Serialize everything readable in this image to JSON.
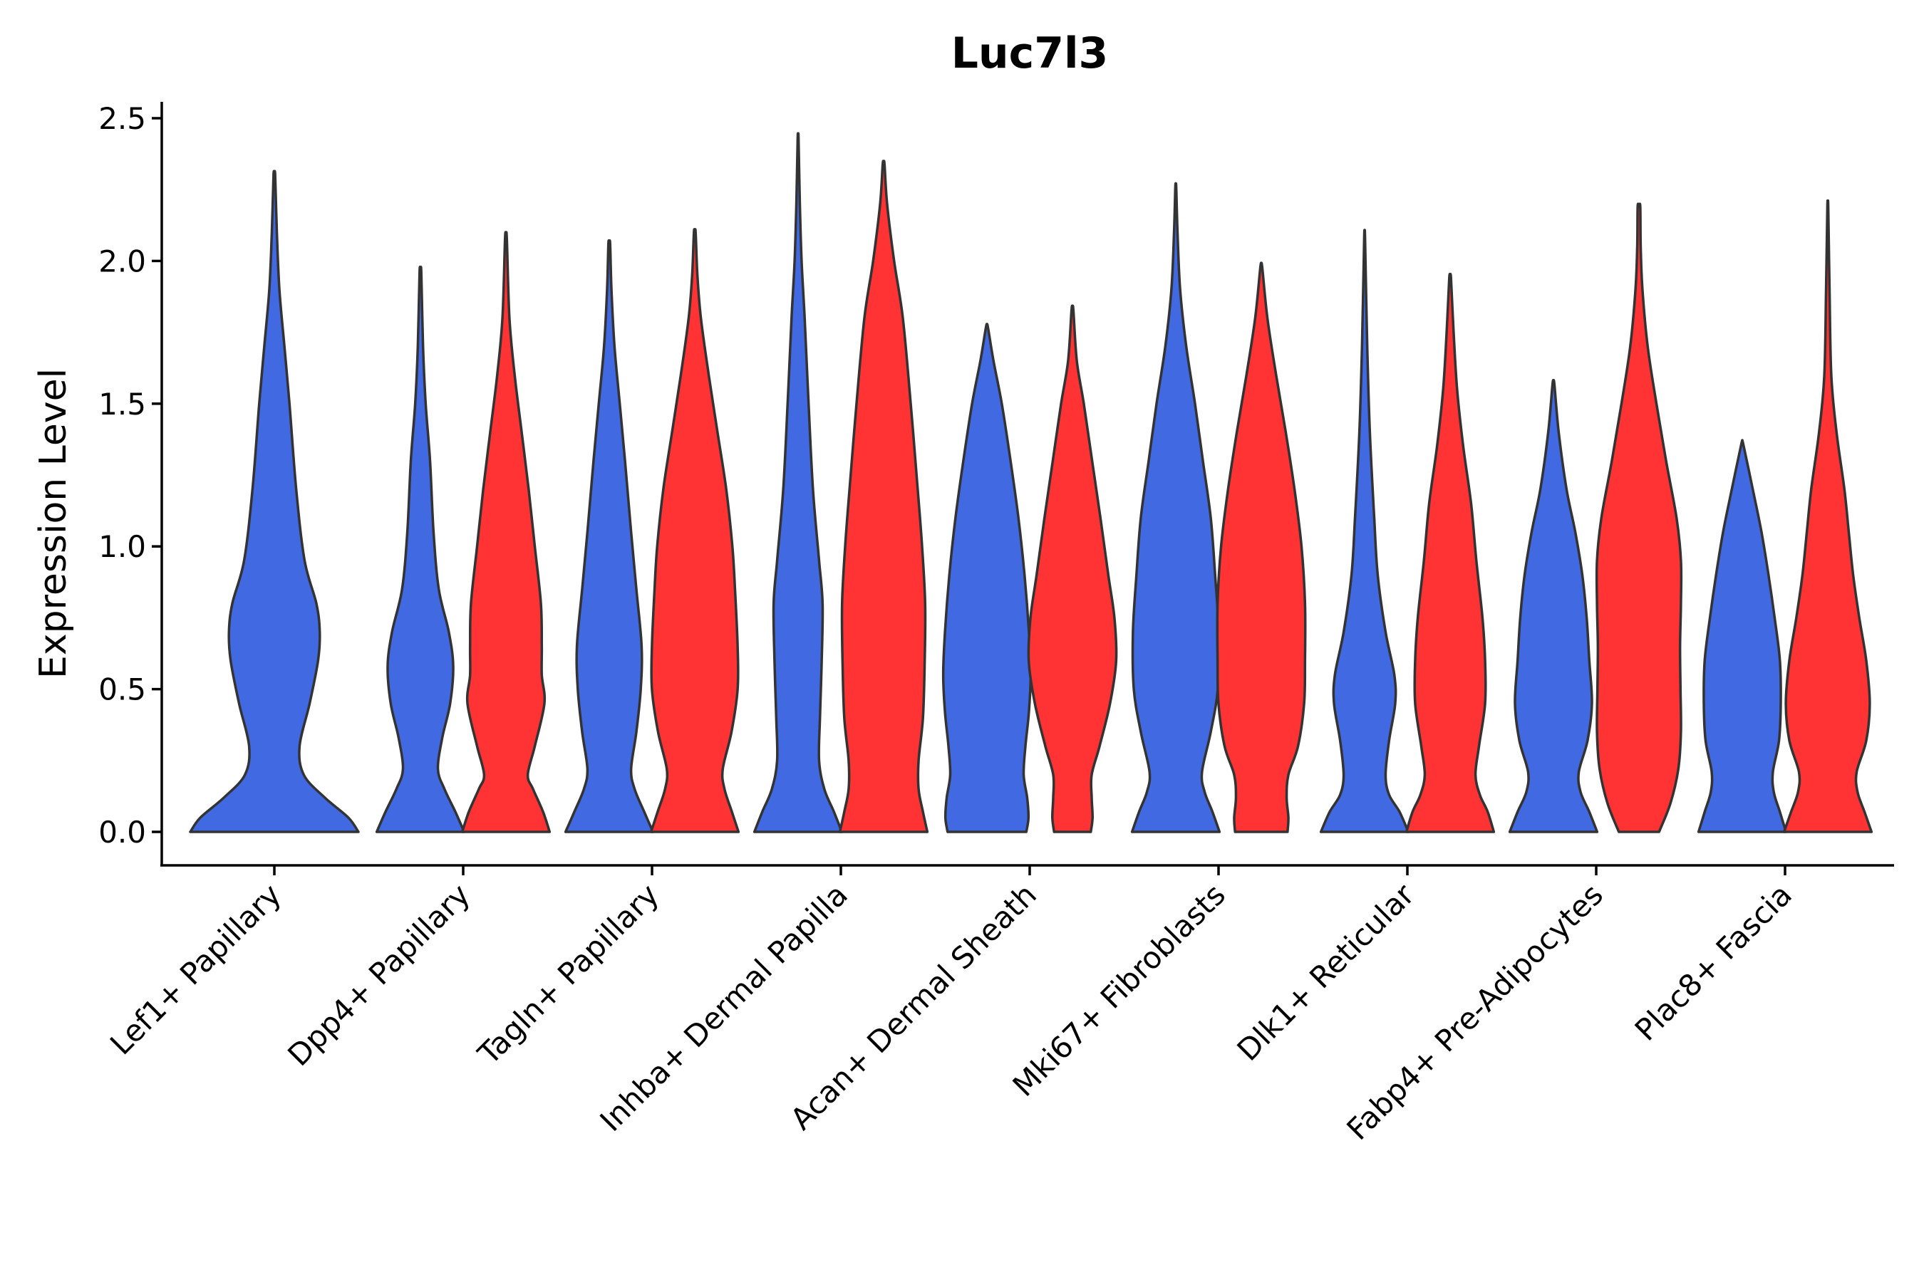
{
  "chart_data": {
    "type": "violin",
    "title": "Luc7l3",
    "xlabel": "",
    "ylabel": "Expression Level",
    "ylim": [
      -0.12,
      2.56
    ],
    "yticks": [
      "0.0",
      "0.5",
      "1.0",
      "1.5",
      "2.0",
      "2.5"
    ],
    "ytick_values": [
      0.0,
      0.5,
      1.0,
      1.5,
      2.0,
      2.5
    ],
    "categories": [
      "Lef1+ Papillary",
      "Dpp4+ Papillary",
      "Tagln+ Papillary",
      "Inhba+ Dermal Papilla",
      "Acan+ Dermal Sheath",
      "Mki67+ Fibroblasts",
      "Dlk1+ Reticular",
      "Fabp4+ Pre-Adipocytes",
      "Plac8+ Fascia"
    ],
    "split_colors": {
      "group1": "#4169E1",
      "group2": "#FF3333"
    },
    "violins": [
      {
        "category": "Lef1+ Papillary",
        "group": "group1",
        "ymax": 2.3,
        "profile": [
          [
            0,
            1.0
          ],
          [
            0.05,
            0.88
          ],
          [
            0.12,
            0.6
          ],
          [
            0.2,
            0.35
          ],
          [
            0.3,
            0.3
          ],
          [
            0.45,
            0.42
          ],
          [
            0.6,
            0.52
          ],
          [
            0.7,
            0.54
          ],
          [
            0.8,
            0.5
          ],
          [
            0.95,
            0.36
          ],
          [
            1.2,
            0.26
          ],
          [
            1.5,
            0.18
          ],
          [
            1.7,
            0.12
          ],
          [
            1.9,
            0.06
          ],
          [
            2.1,
            0.03
          ],
          [
            2.3,
            0.01
          ]
        ]
      },
      {
        "category": "Dpp4+ Papillary",
        "group": "group1",
        "ymax": 1.96,
        "profile": [
          [
            0,
            1.0
          ],
          [
            0.07,
            0.8
          ],
          [
            0.15,
            0.55
          ],
          [
            0.22,
            0.4
          ],
          [
            0.33,
            0.5
          ],
          [
            0.45,
            0.68
          ],
          [
            0.58,
            0.75
          ],
          [
            0.7,
            0.65
          ],
          [
            0.85,
            0.42
          ],
          [
            1.05,
            0.3
          ],
          [
            1.3,
            0.22
          ],
          [
            1.5,
            0.12
          ],
          [
            1.7,
            0.06
          ],
          [
            1.96,
            0.02
          ]
        ]
      },
      {
        "category": "Dpp4+ Papillary",
        "group": "group2",
        "ymax": 2.08,
        "profile": [
          [
            0,
            1.0
          ],
          [
            0.07,
            0.85
          ],
          [
            0.15,
            0.62
          ],
          [
            0.2,
            0.5
          ],
          [
            0.3,
            0.66
          ],
          [
            0.45,
            0.88
          ],
          [
            0.55,
            0.82
          ],
          [
            0.65,
            0.82
          ],
          [
            0.8,
            0.8
          ],
          [
            1.0,
            0.66
          ],
          [
            1.2,
            0.52
          ],
          [
            1.4,
            0.36
          ],
          [
            1.6,
            0.2
          ],
          [
            1.8,
            0.08
          ],
          [
            2.08,
            0.02
          ]
        ]
      },
      {
        "category": "Tagln+ Papillary",
        "group": "group1",
        "ymax": 2.06,
        "profile": [
          [
            0,
            1.0
          ],
          [
            0.07,
            0.8
          ],
          [
            0.15,
            0.58
          ],
          [
            0.22,
            0.5
          ],
          [
            0.35,
            0.62
          ],
          [
            0.5,
            0.72
          ],
          [
            0.65,
            0.74
          ],
          [
            0.85,
            0.62
          ],
          [
            1.05,
            0.5
          ],
          [
            1.3,
            0.36
          ],
          [
            1.5,
            0.24
          ],
          [
            1.7,
            0.12
          ],
          [
            1.9,
            0.05
          ],
          [
            2.06,
            0.02
          ]
        ]
      },
      {
        "category": "Tagln+ Papillary",
        "group": "group2",
        "ymax": 2.1,
        "profile": [
          [
            0,
            1.0
          ],
          [
            0.07,
            0.85
          ],
          [
            0.15,
            0.68
          ],
          [
            0.22,
            0.64
          ],
          [
            0.35,
            0.84
          ],
          [
            0.5,
            0.98
          ],
          [
            0.65,
            0.98
          ],
          [
            0.85,
            0.92
          ],
          [
            1.0,
            0.86
          ],
          [
            1.2,
            0.72
          ],
          [
            1.4,
            0.52
          ],
          [
            1.6,
            0.32
          ],
          [
            1.8,
            0.14
          ],
          [
            1.95,
            0.06
          ],
          [
            2.1,
            0.02
          ]
        ]
      },
      {
        "category": "Inhba+ Dermal Papilla",
        "group": "group1",
        "ymax": 2.43,
        "profile": [
          [
            0,
            1.0
          ],
          [
            0.07,
            0.82
          ],
          [
            0.15,
            0.6
          ],
          [
            0.25,
            0.48
          ],
          [
            0.4,
            0.5
          ],
          [
            0.6,
            0.54
          ],
          [
            0.8,
            0.56
          ],
          [
            0.95,
            0.48
          ],
          [
            1.2,
            0.34
          ],
          [
            1.5,
            0.24
          ],
          [
            1.8,
            0.15
          ],
          [
            2.0,
            0.08
          ],
          [
            2.2,
            0.04
          ],
          [
            2.43,
            0.01
          ]
        ]
      },
      {
        "category": "Inhba+ Dermal Papilla",
        "group": "group2",
        "ymax": 2.34,
        "profile": [
          [
            0,
            1.0
          ],
          [
            0.07,
            0.9
          ],
          [
            0.15,
            0.8
          ],
          [
            0.25,
            0.8
          ],
          [
            0.4,
            0.9
          ],
          [
            0.6,
            0.94
          ],
          [
            0.8,
            0.95
          ],
          [
            1.0,
            0.88
          ],
          [
            1.2,
            0.78
          ],
          [
            1.5,
            0.62
          ],
          [
            1.8,
            0.44
          ],
          [
            2.0,
            0.24
          ],
          [
            2.2,
            0.08
          ],
          [
            2.34,
            0.02
          ]
        ]
      },
      {
        "category": "Acan+ Dermal Sheath",
        "group": "group1",
        "ymax": 1.77,
        "profile": [
          [
            0,
            0.9
          ],
          [
            0.05,
            0.95
          ],
          [
            0.12,
            0.92
          ],
          [
            0.2,
            0.84
          ],
          [
            0.3,
            0.88
          ],
          [
            0.42,
            0.96
          ],
          [
            0.55,
            1.0
          ],
          [
            0.7,
            0.96
          ],
          [
            0.9,
            0.86
          ],
          [
            1.1,
            0.72
          ],
          [
            1.3,
            0.54
          ],
          [
            1.5,
            0.34
          ],
          [
            1.65,
            0.15
          ],
          [
            1.77,
            0.02
          ]
        ]
      },
      {
        "category": "Acan+ Dermal Sheath",
        "group": "group2",
        "ymax": 1.83,
        "profile": [
          [
            0,
            0.42
          ],
          [
            0.05,
            0.46
          ],
          [
            0.12,
            0.44
          ],
          [
            0.2,
            0.44
          ],
          [
            0.3,
            0.62
          ],
          [
            0.45,
            0.86
          ],
          [
            0.6,
            1.0
          ],
          [
            0.75,
            0.96
          ],
          [
            0.9,
            0.82
          ],
          [
            1.1,
            0.64
          ],
          [
            1.3,
            0.45
          ],
          [
            1.5,
            0.26
          ],
          [
            1.65,
            0.1
          ],
          [
            1.83,
            0.02
          ]
        ]
      },
      {
        "category": "Mki67+ Fibroblasts",
        "group": "group1",
        "ymax": 2.26,
        "profile": [
          [
            0,
            1.0
          ],
          [
            0.07,
            0.84
          ],
          [
            0.14,
            0.66
          ],
          [
            0.21,
            0.6
          ],
          [
            0.35,
            0.8
          ],
          [
            0.5,
            0.96
          ],
          [
            0.7,
            0.98
          ],
          [
            0.9,
            0.9
          ],
          [
            1.1,
            0.8
          ],
          [
            1.3,
            0.62
          ],
          [
            1.5,
            0.44
          ],
          [
            1.7,
            0.24
          ],
          [
            1.9,
            0.1
          ],
          [
            2.1,
            0.04
          ],
          [
            2.26,
            0.01
          ]
        ]
      },
      {
        "category": "Mki67+ Fibroblasts",
        "group": "group2",
        "ymax": 1.98,
        "profile": [
          [
            0,
            0.6
          ],
          [
            0.05,
            0.62
          ],
          [
            0.12,
            0.58
          ],
          [
            0.2,
            0.62
          ],
          [
            0.3,
            0.84
          ],
          [
            0.45,
            0.98
          ],
          [
            0.6,
            1.0
          ],
          [
            0.8,
            1.0
          ],
          [
            1.0,
            0.92
          ],
          [
            1.2,
            0.76
          ],
          [
            1.4,
            0.56
          ],
          [
            1.6,
            0.34
          ],
          [
            1.8,
            0.14
          ],
          [
            1.98,
            0.02
          ]
        ]
      },
      {
        "category": "Dlk1+ Reticular",
        "group": "group1",
        "ymax": 2.08,
        "profile": [
          [
            0,
            1.0
          ],
          [
            0.07,
            0.8
          ],
          [
            0.13,
            0.56
          ],
          [
            0.2,
            0.48
          ],
          [
            0.32,
            0.56
          ],
          [
            0.45,
            0.7
          ],
          [
            0.55,
            0.68
          ],
          [
            0.7,
            0.48
          ],
          [
            0.9,
            0.3
          ],
          [
            1.1,
            0.22
          ],
          [
            1.4,
            0.12
          ],
          [
            1.7,
            0.06
          ],
          [
            2.08,
            0.01
          ]
        ]
      },
      {
        "category": "Dlk1+ Reticular",
        "group": "group2",
        "ymax": 1.94,
        "profile": [
          [
            0,
            1.0
          ],
          [
            0.07,
            0.86
          ],
          [
            0.13,
            0.68
          ],
          [
            0.2,
            0.58
          ],
          [
            0.3,
            0.66
          ],
          [
            0.45,
            0.8
          ],
          [
            0.6,
            0.8
          ],
          [
            0.75,
            0.74
          ],
          [
            0.95,
            0.6
          ],
          [
            1.15,
            0.48
          ],
          [
            1.35,
            0.3
          ],
          [
            1.55,
            0.16
          ],
          [
            1.75,
            0.08
          ],
          [
            1.94,
            0.02
          ]
        ]
      },
      {
        "category": "Fabp4+ Pre-Adipocytes",
        "group": "group1",
        "ymax": 1.57,
        "profile": [
          [
            0,
            1.0
          ],
          [
            0.07,
            0.82
          ],
          [
            0.14,
            0.62
          ],
          [
            0.21,
            0.58
          ],
          [
            0.32,
            0.78
          ],
          [
            0.45,
            0.88
          ],
          [
            0.6,
            0.82
          ],
          [
            0.75,
            0.76
          ],
          [
            0.9,
            0.66
          ],
          [
            1.05,
            0.5
          ],
          [
            1.2,
            0.3
          ],
          [
            1.4,
            0.12
          ],
          [
            1.57,
            0.02
          ]
        ]
      },
      {
        "category": "Fabp4+ Pre-Adipocytes",
        "group": "group2",
        "ymax": 2.19,
        "profile": [
          [
            0,
            0.46
          ],
          [
            0.1,
            0.72
          ],
          [
            0.22,
            0.9
          ],
          [
            0.35,
            0.96
          ],
          [
            0.5,
            0.95
          ],
          [
            0.65,
            0.94
          ],
          [
            0.8,
            0.96
          ],
          [
            0.95,
            0.96
          ],
          [
            1.1,
            0.86
          ],
          [
            1.3,
            0.62
          ],
          [
            1.5,
            0.4
          ],
          [
            1.7,
            0.2
          ],
          [
            1.9,
            0.08
          ],
          [
            2.05,
            0.04
          ],
          [
            2.19,
            0.03
          ]
        ]
      },
      {
        "category": "Plac8+ Fascia",
        "group": "group1",
        "ymax": 1.36,
        "profile": [
          [
            0,
            1.0
          ],
          [
            0.07,
            0.86
          ],
          [
            0.14,
            0.72
          ],
          [
            0.21,
            0.7
          ],
          [
            0.32,
            0.84
          ],
          [
            0.45,
            0.88
          ],
          [
            0.6,
            0.86
          ],
          [
            0.75,
            0.74
          ],
          [
            0.9,
            0.6
          ],
          [
            1.05,
            0.44
          ],
          [
            1.2,
            0.24
          ],
          [
            1.36,
            0.02
          ]
        ]
      },
      {
        "category": "Plac8+ Fascia",
        "group": "group2",
        "ymax": 2.19,
        "profile": [
          [
            0,
            1.0
          ],
          [
            0.07,
            0.84
          ],
          [
            0.14,
            0.68
          ],
          [
            0.21,
            0.66
          ],
          [
            0.32,
            0.88
          ],
          [
            0.45,
            0.96
          ],
          [
            0.6,
            0.88
          ],
          [
            0.75,
            0.72
          ],
          [
            0.9,
            0.58
          ],
          [
            1.05,
            0.48
          ],
          [
            1.2,
            0.38
          ],
          [
            1.4,
            0.2
          ],
          [
            1.6,
            0.08
          ],
          [
            1.9,
            0.04
          ],
          [
            2.19,
            0.01
          ]
        ]
      }
    ]
  }
}
